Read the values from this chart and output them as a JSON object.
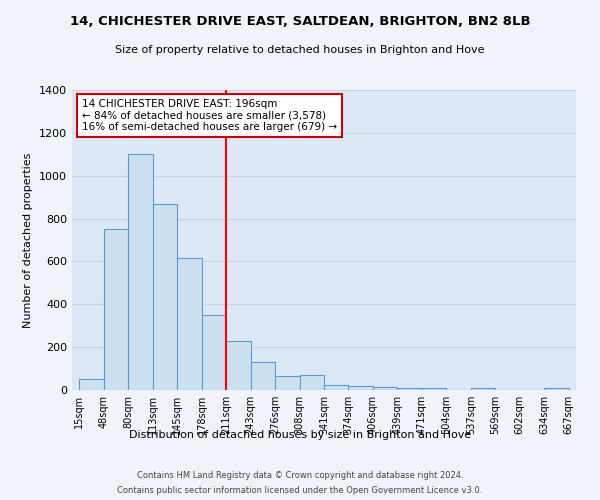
{
  "title": "14, CHICHESTER DRIVE EAST, SALTDEAN, BRIGHTON, BN2 8LB",
  "subtitle": "Size of property relative to detached houses in Brighton and Hove",
  "xlabel": "Distribution of detached houses by size in Brighton and Hove",
  "ylabel": "Number of detached properties",
  "bin_labels": [
    "15sqm",
    "48sqm",
    "80sqm",
    "113sqm",
    "145sqm",
    "178sqm",
    "211sqm",
    "243sqm",
    "276sqm",
    "308sqm",
    "341sqm",
    "374sqm",
    "406sqm",
    "439sqm",
    "471sqm",
    "504sqm",
    "537sqm",
    "569sqm",
    "602sqm",
    "634sqm",
    "667sqm"
  ],
  "bar_values": [
    50,
    750,
    1100,
    870,
    615,
    350,
    230,
    130,
    65,
    70,
    25,
    20,
    15,
    10,
    10,
    0,
    10,
    0,
    0,
    10
  ],
  "bar_color": "#cce0f0",
  "bar_edge_color": "#5b9bd5",
  "red_line_x": 6,
  "annotation_title": "14 CHICHESTER DRIVE EAST: 196sqm",
  "annotation_line1": "← 84% of detached houses are smaller (3,578)",
  "annotation_line2": "16% of semi-detached houses are larger (679) →",
  "annotation_box_color": "#ffffff",
  "annotation_box_edge": "#cc0000",
  "ylim": [
    0,
    1400
  ],
  "yticks": [
    0,
    200,
    400,
    600,
    800,
    1000,
    1200,
    1400
  ],
  "footer1": "Contains HM Land Registry data © Crown copyright and database right 2024.",
  "footer2": "Contains public sector information licensed under the Open Government Licence v3.0.",
  "plot_bg_left": "#dce8f5",
  "plot_bg_right": "#e8f0f8",
  "grid_color": "#c8d4e0",
  "num_bars": 20,
  "n_labels": 21
}
